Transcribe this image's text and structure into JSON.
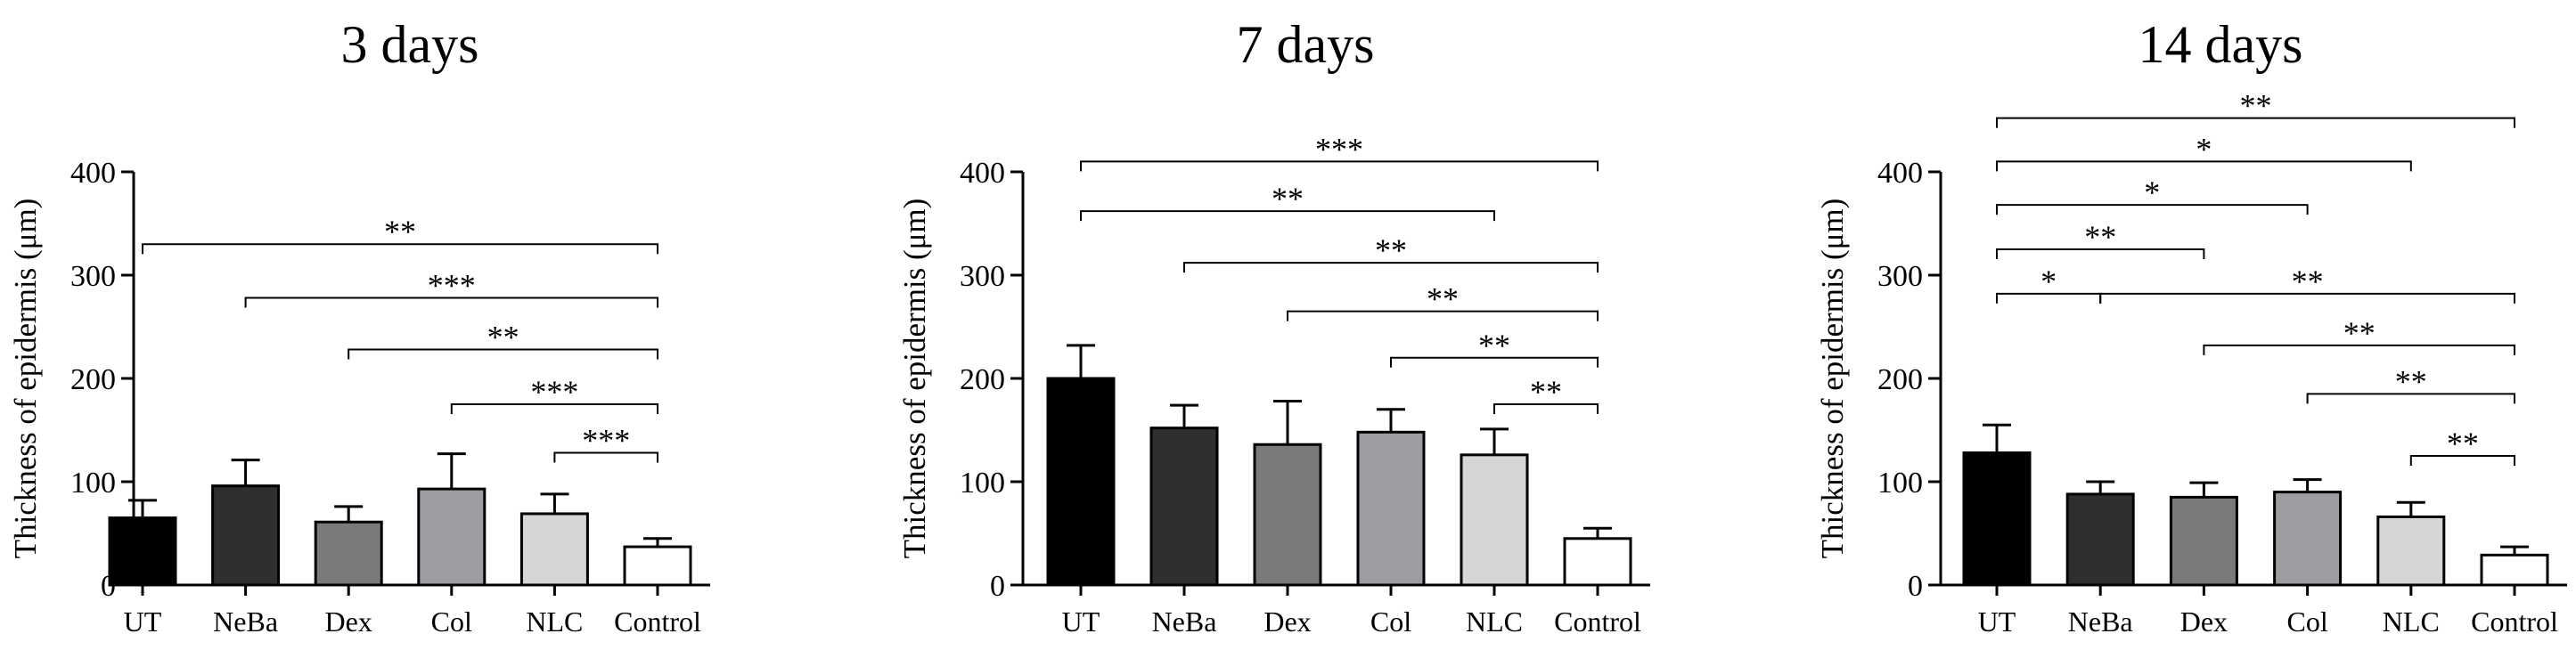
{
  "chart_data": [
    {
      "type": "bar",
      "title": "3 days",
      "ylabel": "Thickness of epidermis (μm)",
      "xlabel": "",
      "ylim": [
        0,
        400
      ],
      "yticks": [
        0,
        100,
        200,
        300,
        400
      ],
      "categories": [
        "UT",
        "NeBa",
        "Dex",
        "Col",
        "NLC",
        "Control"
      ],
      "values": [
        65,
        96,
        61,
        93,
        69,
        37
      ],
      "errors": [
        17,
        25,
        15,
        34,
        19,
        8
      ],
      "colors": [
        "#000000",
        "#2f2f2f",
        "#7a7a7a",
        "#9d9ca1",
        "#d6d6d6",
        "#ffffff"
      ],
      "significance": [
        {
          "from": "UT",
          "to": "Control",
          "label": "**",
          "level": 330
        },
        {
          "from": "NeBa",
          "to": "Control",
          "label": "***",
          "level": 278
        },
        {
          "from": "Dex",
          "to": "Control",
          "label": "**",
          "level": 228
        },
        {
          "from": "Col",
          "to": "Control",
          "label": "***",
          "level": 175
        },
        {
          "from": "NLC",
          "to": "Control",
          "label": "***",
          "level": 128
        }
      ]
    },
    {
      "type": "bar",
      "title": "7 days",
      "ylabel": "Thickness of epidermis (μm)",
      "xlabel": "",
      "ylim": [
        0,
        400
      ],
      "yticks": [
        0,
        100,
        200,
        300,
        400
      ],
      "categories": [
        "UT",
        "NeBa",
        "Dex",
        "Col",
        "NLC",
        "Control"
      ],
      "values": [
        200,
        152,
        136,
        148,
        126,
        45
      ],
      "errors": [
        32,
        22,
        42,
        22,
        25,
        10
      ],
      "colors": [
        "#000000",
        "#2f2f2f",
        "#7a7a7a",
        "#9d9ca1",
        "#d6d6d6",
        "#ffffff"
      ],
      "significance": [
        {
          "from": "UT",
          "to": "Control",
          "label": "***",
          "level": 410
        },
        {
          "from": "UT",
          "to": "NLC",
          "label": "**",
          "level": 362
        },
        {
          "from": "NeBa",
          "to": "Control",
          "label": "**",
          "level": 312
        },
        {
          "from": "Dex",
          "to": "Control",
          "label": "**",
          "level": 265
        },
        {
          "from": "Col",
          "to": "Control",
          "label": "**",
          "level": 220
        },
        {
          "from": "NLC",
          "to": "Control",
          "label": "**",
          "level": 175
        }
      ]
    },
    {
      "type": "bar",
      "title": "14 days",
      "ylabel": "Thickness of epidermis (μm)",
      "xlabel": "",
      "ylim": [
        0,
        400
      ],
      "yticks": [
        0,
        100,
        200,
        300,
        400
      ],
      "categories": [
        "UT",
        "NeBa",
        "Dex",
        "Col",
        "NLC",
        "Control"
      ],
      "values": [
        128,
        88,
        85,
        90,
        66,
        29
      ],
      "errors": [
        27,
        12,
        14,
        12,
        14,
        8
      ],
      "colors": [
        "#000000",
        "#2f2f2f",
        "#7a7a7a",
        "#9d9ca1",
        "#d6d6d6",
        "#ffffff"
      ],
      "significance": [
        {
          "from": "UT",
          "to": "Control",
          "label": "**",
          "level": 452
        },
        {
          "from": "UT",
          "to": "NLC",
          "label": "*",
          "level": 410
        },
        {
          "from": "UT",
          "to": "Col",
          "label": "*",
          "level": 368
        },
        {
          "from": "UT",
          "to": "Dex",
          "label": "**",
          "level": 325
        },
        {
          "from": "UT",
          "to": "NeBa",
          "label": "*",
          "level": 282
        },
        {
          "from": "NeBa",
          "to": "Control",
          "label": "**",
          "level": 282
        },
        {
          "from": "Dex",
          "to": "Control",
          "label": "**",
          "level": 232
        },
        {
          "from": "Col",
          "to": "Control",
          "label": "**",
          "level": 185
        },
        {
          "from": "NLC",
          "to": "Control",
          "label": "**",
          "level": 125
        }
      ]
    }
  ]
}
